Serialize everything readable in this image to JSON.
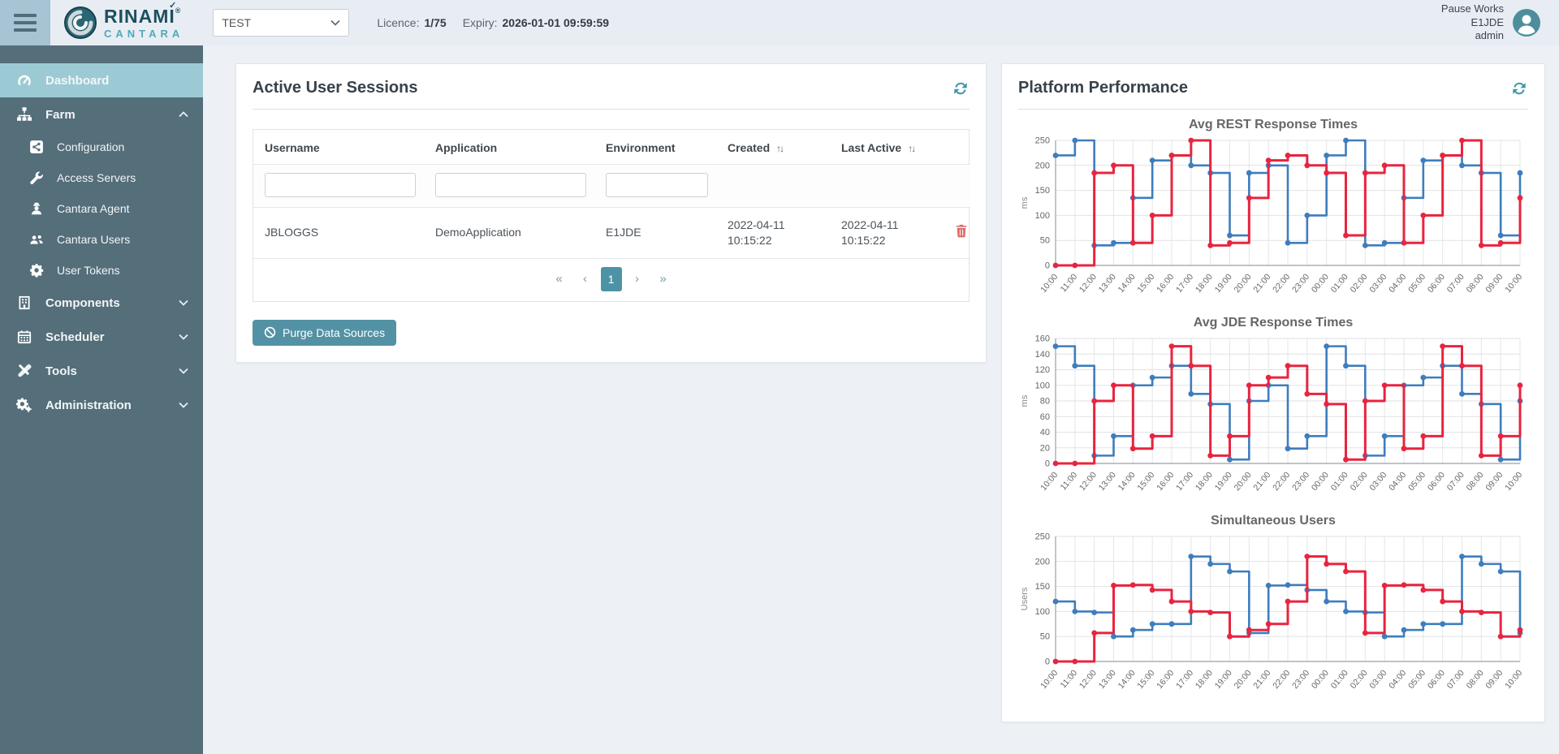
{
  "header": {
    "brand": {
      "name": "RINAMI",
      "registered": "®",
      "check": "✓",
      "product": "CANTARA"
    },
    "environment_select": {
      "value": "TEST"
    },
    "licence_label": "Licence:",
    "licence_value": "1/75",
    "expiry_label": "Expiry:",
    "expiry_value": "2026-01-01 09:59:59",
    "user": {
      "line1": "Pause Works",
      "line2": "E1JDE",
      "line3": "admin"
    }
  },
  "sidebar": {
    "items": [
      {
        "label": "Dashboard",
        "icon": "dashboard-icon",
        "level": 0,
        "active": true,
        "chevron": null
      },
      {
        "label": "Farm",
        "icon": "farm-icon",
        "level": 0,
        "active": false,
        "chevron": "up"
      },
      {
        "label": "Configuration",
        "icon": "configuration-icon",
        "level": 1,
        "active": false,
        "chevron": null
      },
      {
        "label": "Access Servers",
        "icon": "access-servers-icon",
        "level": 1,
        "active": false,
        "chevron": null
      },
      {
        "label": "Cantara Agent",
        "icon": "cantara-agent-icon",
        "level": 1,
        "active": false,
        "chevron": null
      },
      {
        "label": "Cantara Users",
        "icon": "cantara-users-icon",
        "level": 1,
        "active": false,
        "chevron": null
      },
      {
        "label": "User Tokens",
        "icon": "user-tokens-icon",
        "level": 1,
        "active": false,
        "chevron": null
      },
      {
        "label": "Components",
        "icon": "components-icon",
        "level": 0,
        "active": false,
        "chevron": "down"
      },
      {
        "label": "Scheduler",
        "icon": "scheduler-icon",
        "level": 0,
        "active": false,
        "chevron": "down"
      },
      {
        "label": "Tools",
        "icon": "tools-icon",
        "level": 0,
        "active": false,
        "chevron": "down"
      },
      {
        "label": "Administration",
        "icon": "administration-icon",
        "level": 0,
        "active": false,
        "chevron": "down"
      }
    ]
  },
  "sessions_panel": {
    "title": "Active User Sessions",
    "table": {
      "columns": [
        {
          "label": "Username",
          "filter": true,
          "sortable": false
        },
        {
          "label": "Application",
          "filter": true,
          "sortable": false
        },
        {
          "label": "Environment",
          "filter": true,
          "sortable": false
        },
        {
          "label": "Created",
          "filter": false,
          "sortable": true
        },
        {
          "label": "Last Active",
          "filter": false,
          "sortable": true
        }
      ],
      "sort_glyph": "↑↓",
      "rows": [
        {
          "username": "JBLOGGS",
          "application": "DemoApplication",
          "environment": "E1JDE",
          "created": "2022-04-11 10:15:22",
          "last_active": "2022-04-11 10:15:22"
        }
      ]
    },
    "pagination": {
      "first": "«",
      "prev": "‹",
      "pages": [
        "1"
      ],
      "active_page": "1",
      "next": "›",
      "last": "»"
    },
    "purge_button": "Purge Data Sources"
  },
  "performance_panel": {
    "title": "Platform Performance"
  },
  "chart_data": [
    {
      "type": "line",
      "step": true,
      "title": "Avg REST Response Times",
      "xlabel": "",
      "ylabel": "ms",
      "ylim": [
        0,
        250
      ],
      "yticks": [
        0,
        50,
        100,
        150,
        200,
        250
      ],
      "grid": true,
      "legend": "none",
      "x": [
        "10:00",
        "11:00",
        "12:00",
        "13:00",
        "14:00",
        "15:00",
        "16:00",
        "17:00",
        "18:00",
        "19:00",
        "20:00",
        "21:00",
        "22:00",
        "23:00",
        "00:00",
        "01:00",
        "02:00",
        "03:00",
        "04:00",
        "05:00",
        "06:00",
        "07:00",
        "08:00",
        "09:00",
        "10:00"
      ],
      "series": [
        {
          "name": "blue",
          "color": "#3e7dbd",
          "values": [
            220,
            250,
            40,
            45,
            135,
            210,
            220,
            200,
            185,
            60,
            185,
            200,
            45,
            100,
            220,
            250,
            40,
            45,
            135,
            210,
            220,
            200,
            185,
            60,
            185
          ]
        },
        {
          "name": "red",
          "color": "#e8243f",
          "values": [
            0,
            0,
            185,
            200,
            45,
            100,
            220,
            250,
            40,
            45,
            135,
            210,
            220,
            200,
            185,
            60,
            185,
            200,
            45,
            100,
            220,
            250,
            40,
            45,
            135
          ]
        }
      ]
    },
    {
      "type": "line",
      "step": true,
      "title": "Avg JDE Response Times",
      "xlabel": "",
      "ylabel": "ms",
      "ylim": [
        0,
        160
      ],
      "yticks": [
        0,
        20,
        40,
        60,
        80,
        100,
        120,
        140,
        160
      ],
      "grid": true,
      "legend": "none",
      "x": [
        "10:00",
        "11:00",
        "12:00",
        "13:00",
        "14:00",
        "15:00",
        "16:00",
        "17:00",
        "18:00",
        "19:00",
        "20:00",
        "21:00",
        "22:00",
        "23:00",
        "00:00",
        "01:00",
        "02:00",
        "03:00",
        "04:00",
        "05:00",
        "06:00",
        "07:00",
        "08:00",
        "09:00",
        "10:00"
      ],
      "series": [
        {
          "name": "blue",
          "color": "#3e7dbd",
          "values": [
            150,
            125,
            10,
            35,
            100,
            110,
            125,
            89,
            76,
            5,
            80,
            100,
            19,
            35,
            150,
            125,
            10,
            35,
            100,
            110,
            125,
            89,
            76,
            5,
            80
          ]
        },
        {
          "name": "red",
          "color": "#e8243f",
          "values": [
            0,
            0,
            80,
            100,
            19,
            35,
            150,
            125,
            10,
            35,
            100,
            110,
            125,
            89,
            76,
            5,
            80,
            100,
            19,
            35,
            150,
            125,
            10,
            35,
            100
          ]
        }
      ]
    },
    {
      "type": "line",
      "step": true,
      "title": "Simultaneous Users",
      "xlabel": "",
      "ylabel": "Users",
      "ylim": [
        0,
        250
      ],
      "yticks": [
        0,
        50,
        100,
        150,
        200,
        250
      ],
      "grid": true,
      "legend": "none",
      "x": [
        "10:00",
        "11:00",
        "12:00",
        "13:00",
        "14:00",
        "15:00",
        "16:00",
        "17:00",
        "18:00",
        "19:00",
        "20:00",
        "21:00",
        "22:00",
        "23:00",
        "00:00",
        "01:00",
        "02:00",
        "03:00",
        "04:00",
        "05:00",
        "06:00",
        "07:00",
        "08:00",
        "09:00",
        "10:00"
      ],
      "series": [
        {
          "name": "blue",
          "color": "#3e7dbd",
          "values": [
            120,
            100,
            98,
            50,
            63,
            75,
            75,
            210,
            195,
            180,
            57,
            152,
            153,
            143,
            120,
            100,
            98,
            50,
            63,
            75,
            75,
            210,
            195,
            180,
            57
          ]
        },
        {
          "name": "red",
          "color": "#e8243f",
          "values": [
            0,
            0,
            57,
            152,
            153,
            143,
            120,
            100,
            98,
            50,
            63,
            75,
            120,
            210,
            195,
            180,
            57,
            152,
            153,
            143,
            120,
            100,
            98,
            50,
            63
          ]
        }
      ]
    }
  ],
  "colors": {
    "accent_teal": "#4d93a6",
    "sidebar_bg": "#546e7a",
    "active_item_bg": "#9ccad4",
    "header_bg": "#e8edf4",
    "chart_blue": "#3e7dbd",
    "chart_red": "#e8243f",
    "danger": "#e06a6a"
  }
}
